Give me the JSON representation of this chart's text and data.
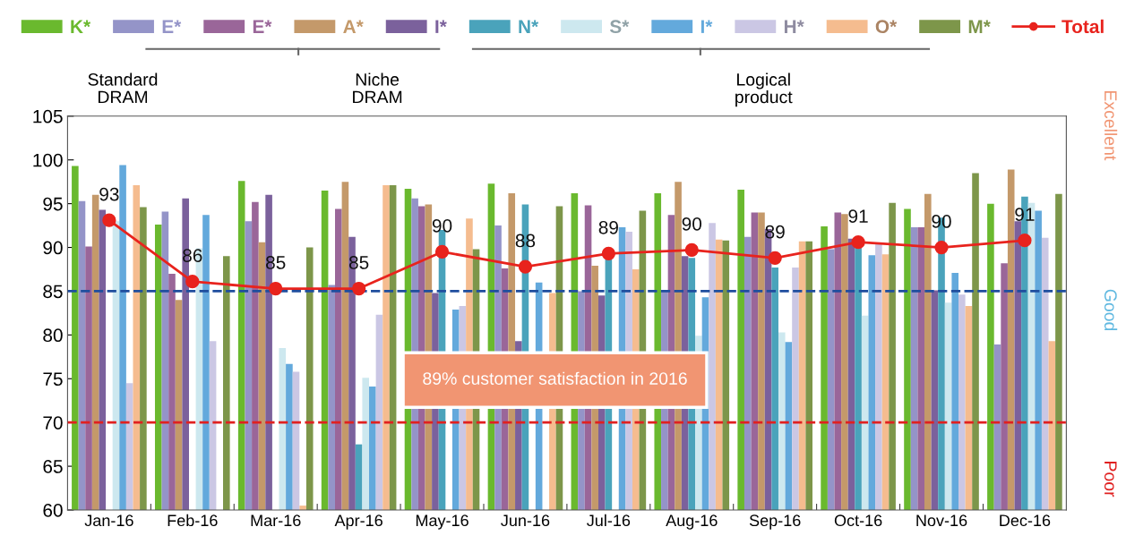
{
  "chart_data": {
    "type": "bar",
    "categories": [
      "Jan-16",
      "Feb-16",
      "Mar-16",
      "Apr-16",
      "May-16",
      "Jun-16",
      "Jul-16",
      "Aug-16",
      "Sep-16",
      "Oct-16",
      "Nov-16",
      "Dec-16"
    ],
    "ylim": [
      60,
      105
    ],
    "yticks": [
      60,
      65,
      70,
      75,
      80,
      85,
      90,
      95,
      100,
      105
    ],
    "grid": false,
    "legend": "top",
    "series": [
      {
        "name": "K*",
        "color": "#6ab92e",
        "values": [
          99.3,
          92.6,
          97.6,
          96.5,
          96.7,
          97.3,
          96.2,
          96.2,
          96.6,
          92.4,
          94.4,
          95.0
        ]
      },
      {
        "name": "E*",
        "color": "#9494c8",
        "values": [
          95.3,
          94.1,
          93.0,
          85.7,
          95.6,
          92.5,
          85.0,
          85.0,
          91.2,
          89.8,
          92.3,
          78.9
        ]
      },
      {
        "name": "E*",
        "color": "#9a6699",
        "values": [
          90.1,
          87.0,
          95.2,
          94.4,
          94.7,
          87.6,
          94.8,
          93.7,
          94.0,
          94.0,
          92.3,
          88.2
        ]
      },
      {
        "name": "A*",
        "color": "#c4996a",
        "values": [
          96.0,
          84.0,
          90.6,
          97.5,
          94.9,
          96.2,
          87.9,
          97.5,
          94.0,
          93.8,
          96.1,
          98.9
        ]
      },
      {
        "name": "I*",
        "color": "#7b619c",
        "values": [
          94.3,
          95.6,
          96.0,
          91.2,
          84.8,
          79.3,
          84.5,
          89.0,
          92.1,
          91.0,
          85.1,
          93.0
        ]
      },
      {
        "name": "N*",
        "color": "#4aa3bb",
        "values": [
          null,
          null,
          null,
          67.5,
          92.0,
          94.9,
          88.8,
          88.8,
          87.7,
          90.1,
          93.4,
          95.8
        ]
      },
      {
        "name": "S*",
        "color": "#cde8ef",
        "values": [
          93.0,
          89.9,
          78.5,
          75.1,
          null,
          null,
          null,
          79.9,
          80.3,
          82.2,
          83.7,
          95.1
        ]
      },
      {
        "name": "I*",
        "color": "#63a9dc",
        "values": [
          99.4,
          93.7,
          76.7,
          74.1,
          82.9,
          86.0,
          92.3,
          84.3,
          79.2,
          89.1,
          87.1,
          94.2
        ]
      },
      {
        "name": "H*",
        "color": "#cbc7e4",
        "values": [
          74.5,
          79.3,
          75.8,
          82.3,
          83.3,
          null,
          91.8,
          92.8,
          87.7,
          90.4,
          84.6,
          91.1
        ]
      },
      {
        "name": "O*",
        "color": "#f5bc8f",
        "values": [
          97.1,
          null,
          60.5,
          97.1,
          93.3,
          84.8,
          87.5,
          90.9,
          90.7,
          89.2,
          83.3,
          79.3
        ]
      },
      {
        "name": "M*",
        "color": "#7d964a",
        "values": [
          94.6,
          89.0,
          90.0,
          97.1,
          89.8,
          94.7,
          94.2,
          90.8,
          90.7,
          95.1,
          98.5,
          96.1
        ]
      },
      {
        "name": "Total",
        "type": "line",
        "marker": "circle",
        "line_style": "solid",
        "color": "#e8231d",
        "values": [
          93.1,
          86.1,
          85.3,
          85.3,
          89.5,
          87.8,
          89.3,
          89.7,
          88.8,
          90.6,
          90.0,
          90.8
        ],
        "value_labels": [
          "93",
          "86",
          "85",
          "85",
          "90",
          "88",
          "89",
          "90",
          "89",
          "91",
          "90",
          "91"
        ]
      }
    ],
    "ref_lines": [
      {
        "axis": "y",
        "value": 85,
        "color": "#1f4e9e",
        "line_style": "dashed"
      },
      {
        "axis": "y",
        "value": 70,
        "color": "#e02020",
        "line_style": "dashed"
      }
    ],
    "annotations": [
      "Standard DRAM",
      "Niche DRAM",
      "Logical product",
      "89% customer satisfaction in 2016",
      "Excellent",
      "Good",
      "Poor"
    ]
  }
}
